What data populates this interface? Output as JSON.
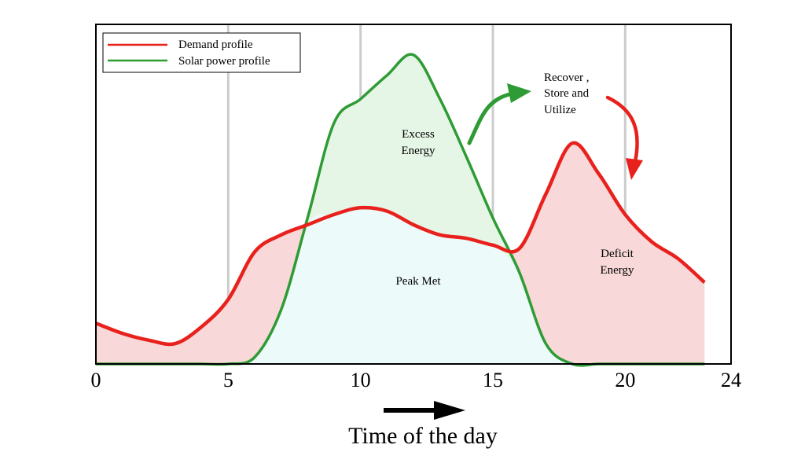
{
  "chart_data": {
    "type": "area",
    "xlabel": "Time of the day",
    "ylabel": "",
    "xlim": [
      0,
      24
    ],
    "ylim": [
      0,
      1
    ],
    "xticks": [
      0,
      5,
      10,
      15,
      20,
      24
    ],
    "grid": "vertical",
    "legend_position": "top-left",
    "series": [
      {
        "name": "Demand profile",
        "color": "#e8211d",
        "x": [
          0,
          1,
          2,
          3,
          4,
          5,
          6,
          7,
          8,
          9,
          10,
          11,
          12,
          13,
          14,
          15,
          16,
          17,
          18,
          19,
          20,
          21,
          22,
          23
        ],
        "y": [
          0.12,
          0.09,
          0.07,
          0.06,
          0.11,
          0.19,
          0.33,
          0.38,
          0.41,
          0.44,
          0.46,
          0.45,
          0.41,
          0.38,
          0.37,
          0.35,
          0.34,
          0.5,
          0.65,
          0.56,
          0.44,
          0.36,
          0.31,
          0.24
        ]
      },
      {
        "name": "Solar power profile",
        "color": "#2e9b35",
        "x": [
          0,
          1,
          2,
          3,
          4,
          5,
          6,
          7,
          8,
          9,
          10,
          11,
          12,
          13,
          14,
          15,
          16,
          17,
          18,
          19,
          20,
          21,
          22,
          23
        ],
        "y": [
          0,
          0,
          0,
          0,
          0,
          0,
          0.02,
          0.16,
          0.43,
          0.71,
          0.78,
          0.85,
          0.91,
          0.78,
          0.61,
          0.43,
          0.27,
          0.06,
          0.0,
          0,
          0,
          0,
          0,
          0
        ]
      }
    ],
    "regions": [
      {
        "label": "Excess Energy",
        "fill": "#e6f6e6"
      },
      {
        "label": "Peak Met",
        "fill": "#edfafa"
      },
      {
        "label": "Deficit Energy",
        "fill": "#f8d8d8"
      }
    ],
    "annotations": [
      {
        "text": "Recover ,",
        "line": 1
      },
      {
        "text": "Store and",
        "line": 2
      },
      {
        "text": "Utilize",
        "line": 3
      }
    ],
    "arrow_colors": {
      "recover": "#2e9b35",
      "deficit": "#e8211d",
      "time": "#000000"
    }
  }
}
